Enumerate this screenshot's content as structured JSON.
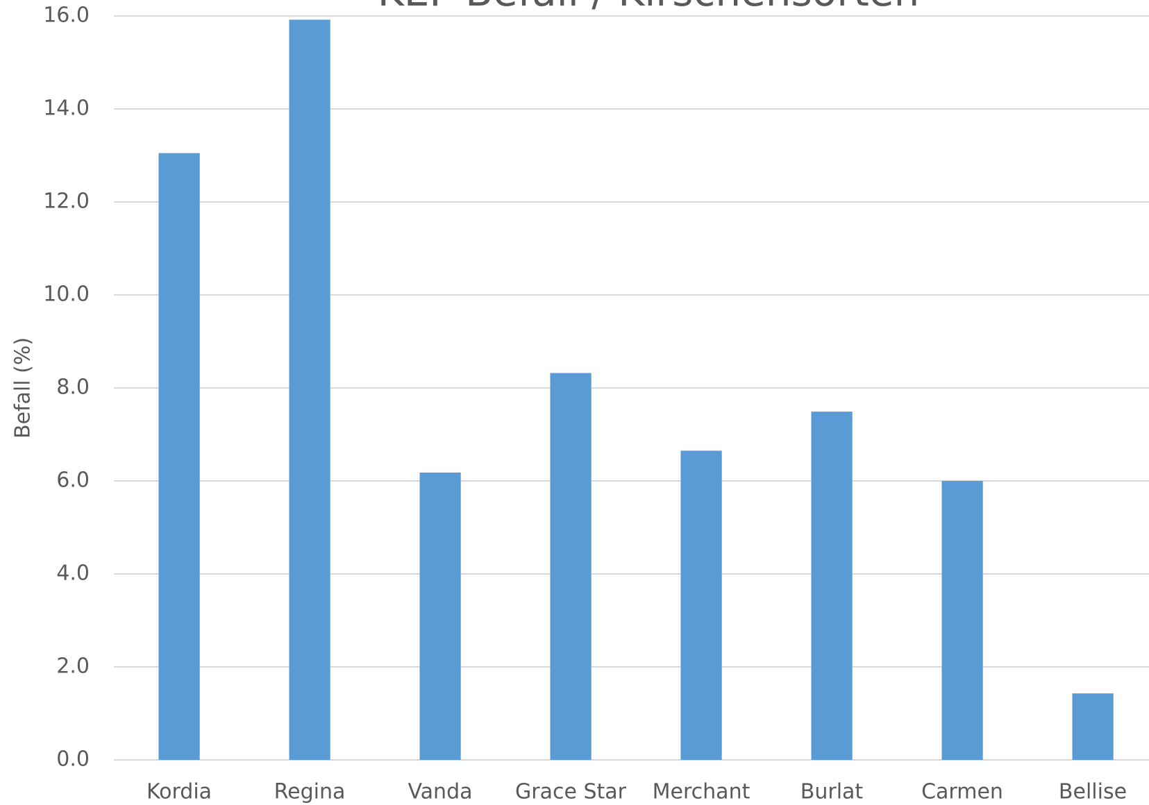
{
  "chart_data": {
    "type": "bar",
    "title": "KEF Befall / Kirschensorten",
    "y_label": "Befall (%)",
    "categories": [
      "Kordia",
      "Regina",
      "Vanda",
      "Grace Star",
      "Merchant",
      "Burlat",
      "Carmen",
      "Bellise"
    ],
    "values": [
      13.05,
      15.92,
      6.18,
      8.32,
      6.65,
      7.49,
      6.0,
      1.43
    ],
    "color": "#5b9bd5",
    "ylim": [
      0,
      16
    ],
    "yticks": [
      {
        "value": 0,
        "label": "0.0"
      },
      {
        "value": 2,
        "label": "2.0"
      },
      {
        "value": 4,
        "label": "4.0"
      },
      {
        "value": 6,
        "label": "6.0"
      },
      {
        "value": 8,
        "label": "8.0"
      },
      {
        "value": 10,
        "label": "10.0"
      },
      {
        "value": 12,
        "label": "12.0"
      },
      {
        "value": 14,
        "label": "14.0"
      },
      {
        "value": 16,
        "label": "16.0"
      }
    ],
    "grid": true
  }
}
